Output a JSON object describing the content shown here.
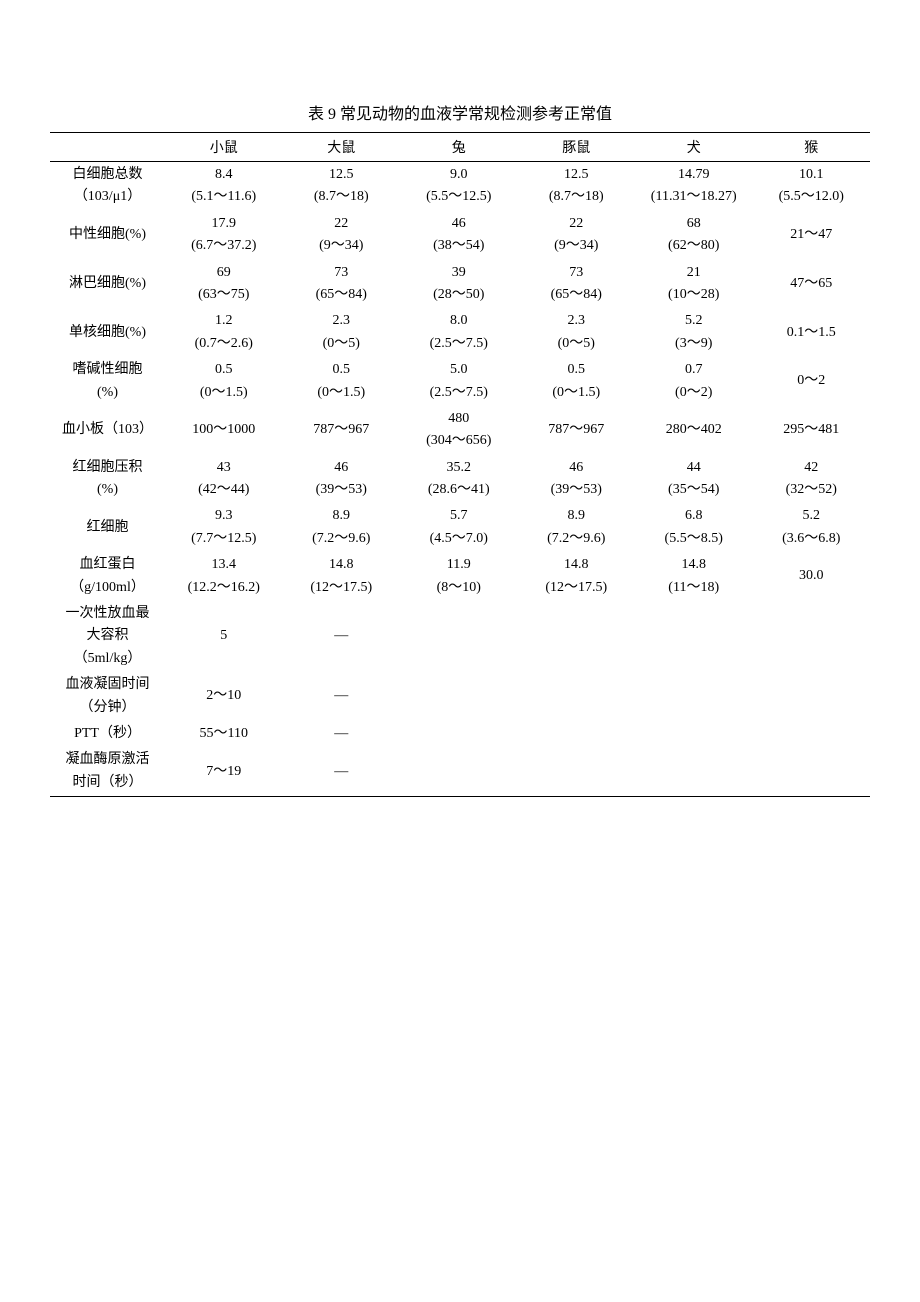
{
  "title": "表 9  常见动物的血液学常规检测参考正常值",
  "columns": [
    "",
    "小鼠",
    "大鼠",
    "兔",
    "豚鼠",
    "犬",
    "猴"
  ],
  "rows": [
    {
      "label": [
        "白细胞总数",
        "（103/μ1）"
      ],
      "cells": [
        [
          "8.4",
          "(5.1～11.6)"
        ],
        [
          "12.5",
          "(8.7～18)"
        ],
        [
          "9.0",
          "(5.5～12.5)"
        ],
        [
          "12.5",
          "(8.7～18)"
        ],
        [
          "14.79",
          "(11.31～18.27)"
        ],
        [
          "10.1",
          "(5.5～12.0)"
        ]
      ]
    },
    {
      "label": [
        "中性细胞(%)"
      ],
      "cells": [
        [
          "17.9",
          "(6.7～37.2)"
        ],
        [
          "22",
          "(9～34)"
        ],
        [
          "46",
          "(38～54)"
        ],
        [
          "22",
          "(9～34)"
        ],
        [
          "68",
          "(62～80)"
        ],
        [
          "21～47"
        ]
      ]
    },
    {
      "label": [
        "淋巴细胞(%)"
      ],
      "cells": [
        [
          "69",
          "(63～75)"
        ],
        [
          "73",
          "(65～84)"
        ],
        [
          "39",
          "(28～50)"
        ],
        [
          "73",
          "(65～84)"
        ],
        [
          "21",
          "(10～28)"
        ],
        [
          "47～65"
        ]
      ]
    },
    {
      "label": [
        "单核细胞(%)"
      ],
      "cells": [
        [
          "1.2",
          "(0.7～2.6)"
        ],
        [
          "2.3",
          "(0～5)"
        ],
        [
          "8.0",
          "(2.5～7.5)"
        ],
        [
          "2.3",
          "(0～5)"
        ],
        [
          "5.2",
          "(3～9)"
        ],
        [
          "0.1～1.5"
        ]
      ]
    },
    {
      "label": [
        "嗜碱性细胞",
        "(%)"
      ],
      "cells": [
        [
          "0.5",
          "(0～1.5)"
        ],
        [
          "0.5",
          "(0～1.5)"
        ],
        [
          "5.0",
          "(2.5～7.5)"
        ],
        [
          "0.5",
          "(0～1.5)"
        ],
        [
          "0.7",
          "(0～2)"
        ],
        [
          "0～2"
        ]
      ]
    },
    {
      "label": [
        "血小板（103）"
      ],
      "cells": [
        [
          "100～1000"
        ],
        [
          "787～967"
        ],
        [
          "480",
          "(304～656)"
        ],
        [
          "787～967"
        ],
        [
          "280～402"
        ],
        [
          "295～481"
        ]
      ]
    },
    {
      "label": [
        "红细胞压积",
        "(%)"
      ],
      "cells": [
        [
          "43",
          "(42～44)"
        ],
        [
          "46",
          "(39～53)"
        ],
        [
          "35.2",
          "(28.6～41)"
        ],
        [
          "46",
          "(39～53)"
        ],
        [
          "44",
          "(35～54)"
        ],
        [
          "42",
          "(32～52)"
        ]
      ]
    },
    {
      "label": [
        "红细胞"
      ],
      "cells": [
        [
          "9.3",
          "(7.7～12.5)"
        ],
        [
          "8.9",
          "(7.2～9.6)"
        ],
        [
          "5.7",
          "(4.5～7.0)"
        ],
        [
          "8.9",
          "(7.2～9.6)"
        ],
        [
          "6.8",
          "(5.5～8.5)"
        ],
        [
          "5.2",
          "(3.6～6.8)"
        ]
      ]
    },
    {
      "label": [
        "血红蛋白",
        "（g/100ml）"
      ],
      "cells": [
        [
          "13.4",
          "(12.2～16.2)"
        ],
        [
          "14.8",
          "(12～17.5)"
        ],
        [
          "11.9",
          "(8～10)"
        ],
        [
          "14.8",
          "(12～17.5)"
        ],
        [
          "14.8",
          "(11～18)"
        ],
        [
          "30.0"
        ]
      ]
    },
    {
      "label": [
        "一次性放血最",
        "大容积",
        "（5ml/kg）"
      ],
      "cells": [
        [
          "5"
        ],
        [
          "—"
        ],
        [
          ""
        ],
        [
          ""
        ],
        [
          ""
        ],
        [
          ""
        ]
      ]
    },
    {
      "label": [
        "血液凝固时间",
        "（分钟）"
      ],
      "cells": [
        [
          "2～10"
        ],
        [
          "—"
        ],
        [
          ""
        ],
        [
          ""
        ],
        [
          ""
        ],
        [
          ""
        ]
      ]
    },
    {
      "label": [
        "PTT（秒）"
      ],
      "cells": [
        [
          "55～110"
        ],
        [
          "—"
        ],
        [
          ""
        ],
        [
          ""
        ],
        [
          ""
        ],
        [
          ""
        ]
      ]
    },
    {
      "label": [
        "凝血酶原激活",
        "时间（秒）"
      ],
      "cells": [
        [
          "7～19"
        ],
        [
          "—"
        ],
        [
          ""
        ],
        [
          ""
        ],
        [
          ""
        ],
        [
          ""
        ]
      ]
    }
  ],
  "styling": {
    "font_family": "SimSun",
    "title_fontsize": 16,
    "body_fontsize": 14,
    "text_color": "#000000",
    "background_color": "#ffffff",
    "border_color": "#000000",
    "border_top_width": 1.5,
    "border_bottom_width": 1.5,
    "header_border_width": 1,
    "line_height": 1.6,
    "column_widths_pct": [
      14,
      14.3,
      14.3,
      14.3,
      14.3,
      14.3,
      14.3
    ]
  }
}
